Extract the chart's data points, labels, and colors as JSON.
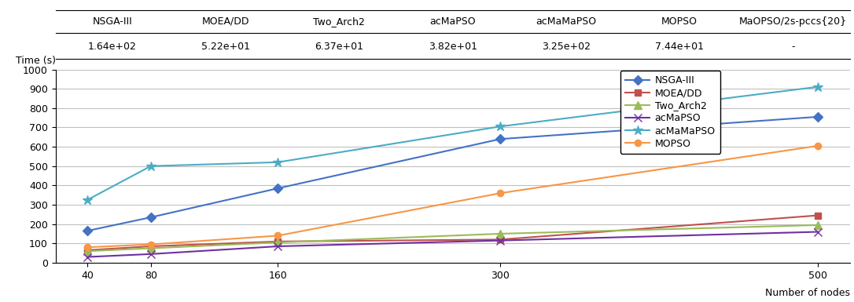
{
  "x_nodes": [
    40,
    80,
    160,
    300,
    500
  ],
  "series": {
    "NSGA-III": {
      "values": [
        165,
        235,
        385,
        640,
        755
      ],
      "color": "#4472C4",
      "marker": "D",
      "linestyle": "-",
      "markersize": 6
    },
    "MOEA/DD": {
      "values": [
        65,
        85,
        110,
        120,
        245
      ],
      "color": "#C0504D",
      "marker": "s",
      "linestyle": "-",
      "markersize": 6
    },
    "Two_Arch2": {
      "values": [
        60,
        75,
        105,
        150,
        195
      ],
      "color": "#9BBB59",
      "marker": "^",
      "linestyle": "-",
      "markersize": 7
    },
    "acMaPSO": {
      "values": [
        30,
        45,
        85,
        115,
        160
      ],
      "color": "#7030A0",
      "marker": "x",
      "linestyle": "-",
      "markersize": 7
    },
    "acMaMaPSO": {
      "values": [
        325,
        500,
        520,
        705,
        910
      ],
      "color": "#4BACC6",
      "marker": "*",
      "linestyle": "-",
      "markersize": 9
    },
    "MOPSO": {
      "values": [
        80,
        95,
        140,
        360,
        605
      ],
      "color": "#F79646",
      "marker": "o",
      "linestyle": "-",
      "markersize": 6
    }
  },
  "ylabel": "Time (s)",
  "xlabel": "Number of nodes",
  "yticks": [
    0,
    100,
    200,
    300,
    400,
    500,
    600,
    700,
    800,
    900,
    1000
  ],
  "xticks": [
    40,
    80,
    160,
    300,
    500
  ],
  "ylim": [
    0,
    1000
  ],
  "table_headers": [
    "NSGA-III",
    "MOEA/DD",
    "Two_Arch2",
    "acMaPSO",
    "acMaMaPSO",
    "MOPSO",
    "MaOPSO/2s-pccs{20}"
  ],
  "table_values": [
    "1.64e+02",
    "5.22e+01",
    "6.37e+01",
    "3.82e+01",
    "3.25e+02",
    "7.44e+01",
    "-"
  ],
  "grid_color": "#C0C0C0",
  "background_color": "#FFFFFF",
  "font_size": 9,
  "linewidth": 1.5
}
